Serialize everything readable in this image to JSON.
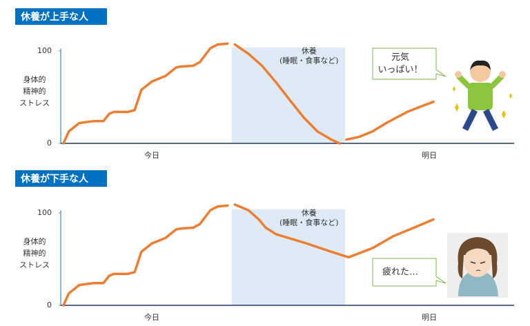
{
  "chart_data": [
    {
      "type": "line",
      "title": "休養が上手な人",
      "y_label": [
        "身体的",
        "精神的",
        "ストレス"
      ],
      "x": [
        0.6,
        1.8,
        4.1,
        7.2,
        9.4,
        10.7,
        11.7,
        14.8,
        16.3,
        17.8,
        20.1,
        23.1,
        25.4,
        26.2,
        29.2,
        30.7,
        33,
        34.6,
        36.8,
        37.6,
        38.4,
        41.4,
        44.4,
        47.5,
        50.5,
        53.6,
        56.6,
        59.7,
        61.5,
        62.3,
        63,
        65.8,
        68.8,
        71.8,
        76.4,
        79.5,
        82.2
      ],
      "series": [
        {
          "color": "#ed7d31",
          "values": [
            0,
            13,
            22,
            24,
            24,
            32,
            34,
            34,
            36,
            58,
            67,
            73,
            82,
            83,
            84,
            88,
            103,
            107,
            108,
            null,
            107,
            97,
            84,
            66,
            47,
            28,
            13,
            4,
            0,
            null,
            4,
            7,
            13,
            22,
            34,
            40,
            45
          ]
        }
      ],
      "xlim": [
        0,
        100
      ],
      "ylim": [
        0,
        110
      ],
      "yticks": [
        0,
        100
      ],
      "xticks": [
        {
          "value": 20.1,
          "label": "今日"
        },
        {
          "value": 81.3,
          "label": "明日"
        }
      ],
      "band": {
        "x": [
          37.7,
          62.7
        ],
        "label": "休養",
        "sublabel": "(睡眠・食事など)",
        "color": "#deebf7"
      },
      "callout": [
        "元気",
        "いっぱい！"
      ]
    },
    {
      "type": "line",
      "title": "休養が下手な人",
      "y_label": [
        "身体的",
        "精神的",
        "ストレス"
      ],
      "x": [
        0.6,
        1.8,
        4.1,
        7.2,
        9.4,
        10.7,
        11.7,
        14.8,
        16.3,
        17.8,
        20.1,
        23.1,
        25.4,
        26.2,
        29.2,
        30.7,
        33,
        34.6,
        36.8,
        37.6,
        38.4,
        41.4,
        43.7,
        45.2,
        47.5,
        53.6,
        59.7,
        63.5,
        68.8,
        73.4,
        77.9,
        82.2
      ],
      "series": [
        {
          "color": "#ed7d31",
          "values": [
            0,
            13,
            22,
            24,
            24,
            32,
            34,
            34,
            36,
            58,
            67,
            73,
            82,
            83,
            84,
            88,
            103,
            107,
            108,
            null,
            109,
            103,
            93,
            84,
            77,
            68,
            58,
            52,
            62,
            75,
            84,
            93
          ]
        }
      ],
      "xlim": [
        0,
        100
      ],
      "ylim": [
        0,
        110
      ],
      "yticks": [
        0,
        100
      ],
      "xticks": [
        {
          "value": 20.1,
          "label": "今日"
        },
        {
          "value": 81.3,
          "label": "明日"
        }
      ],
      "band": {
        "x": [
          37.7,
          62.7
        ],
        "label": "休養",
        "sublabel": "(睡眠・食事など)",
        "color": "#deebf7"
      },
      "callout": [
        "疲れた…"
      ]
    }
  ]
}
